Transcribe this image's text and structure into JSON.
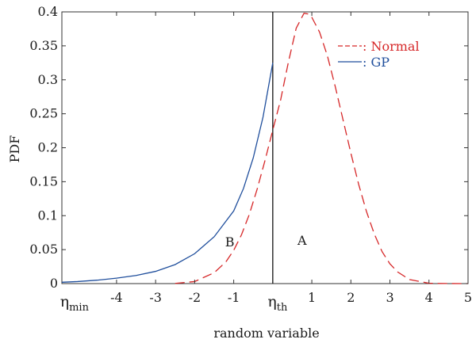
{
  "chart_data": {
    "type": "line",
    "xlabel": "random variable",
    "ylabel": "PDF",
    "xlim": [
      -5.4,
      5
    ],
    "ylim": [
      0,
      0.4
    ],
    "xticks": [
      -4,
      -3,
      -2,
      -1,
      1,
      2,
      3,
      4,
      5
    ],
    "xtick_labels": [
      "-4",
      "-3",
      "-2",
      "-1",
      "1",
      "2",
      "3",
      "4",
      "5"
    ],
    "yticks": [
      0,
      0.05,
      0.1,
      0.15,
      0.2,
      0.25,
      0.3,
      0.35,
      0.4
    ],
    "ytick_labels": [
      "0",
      "0.05",
      "0.1",
      "0.15",
      "0.2",
      "0.25",
      "0.3",
      "0.35",
      "0.4"
    ],
    "special_xticks": [
      {
        "base": "η",
        "sub": "min",
        "x": -5.2
      },
      {
        "base": "η",
        "sub": "th",
        "x": 0
      }
    ],
    "vertical_line_x": 0,
    "annotations": [
      {
        "text": "B",
        "x": -1.1,
        "y": 0.055
      },
      {
        "text": "A",
        "x": 0.75,
        "y": 0.057
      }
    ],
    "legend_position": "top-right",
    "series": [
      {
        "name": ": Normal",
        "color": "#d62728",
        "style": "dashed",
        "x": [
          -2.5,
          -2.0,
          -1.5,
          -1.2,
          -1.0,
          -0.8,
          -0.6,
          -0.4,
          -0.2,
          0.0,
          0.2,
          0.4,
          0.6,
          0.8,
          0.9,
          1.0,
          1.2,
          1.4,
          1.6,
          1.8,
          2.0,
          2.2,
          2.4,
          2.6,
          2.8,
          3.0,
          3.2,
          3.5,
          4.0,
          4.5,
          5.0
        ],
        "values": [
          0.0003,
          0.003,
          0.016,
          0.032,
          0.049,
          0.072,
          0.102,
          0.139,
          0.181,
          0.226,
          0.27,
          0.326,
          0.376,
          0.398,
          0.397,
          0.392,
          0.37,
          0.335,
          0.29,
          0.241,
          0.192,
          0.146,
          0.106,
          0.073,
          0.047,
          0.029,
          0.017,
          0.006,
          0.0005,
          0.0001,
          0
        ]
      },
      {
        "name": ": GP",
        "color": "#1f4e9c",
        "style": "solid",
        "x": [
          -5.4,
          -5.0,
          -4.5,
          -4.0,
          -3.5,
          -3.0,
          -2.5,
          -2.0,
          -1.5,
          -1.0,
          -0.75,
          -0.5,
          -0.25,
          0.0
        ],
        "values": [
          0.002,
          0.003,
          0.005,
          0.008,
          0.012,
          0.018,
          0.028,
          0.044,
          0.069,
          0.107,
          0.14,
          0.185,
          0.245,
          0.325
        ]
      }
    ]
  }
}
